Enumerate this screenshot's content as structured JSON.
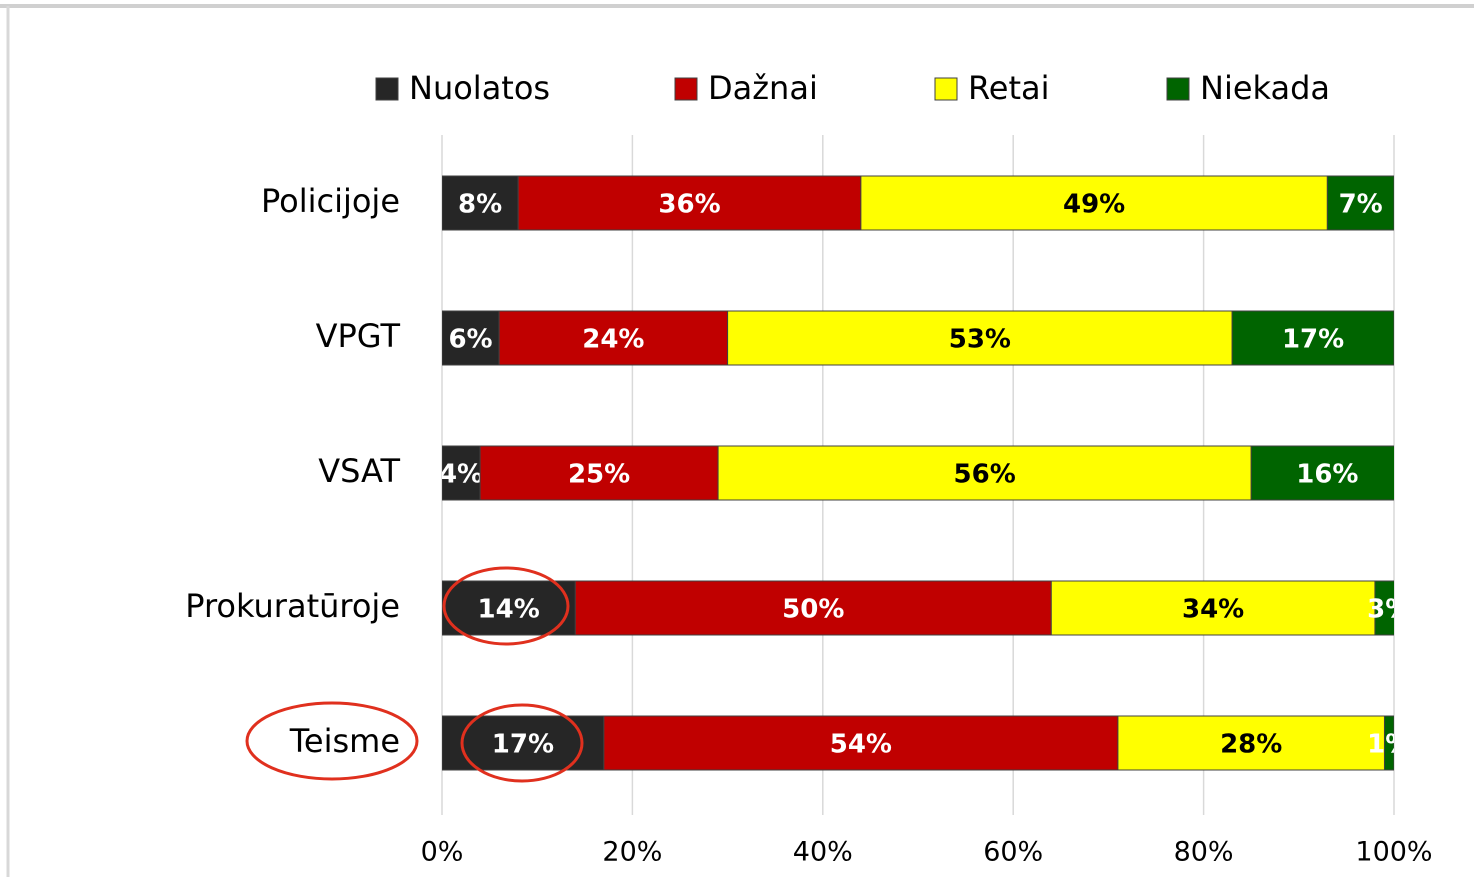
{
  "chart_data": {
    "type": "stacked-bar-horizontal",
    "categories": [
      "Policijoje",
      "VPGT",
      "VSAT",
      "Prokuratūroje",
      "Teisme"
    ],
    "series": [
      {
        "name": "Nuolatos",
        "color": "#262626",
        "values": [
          8,
          6,
          4,
          14,
          17
        ],
        "value_labels": [
          "8%",
          "6%",
          "4%",
          "14%",
          "17%"
        ]
      },
      {
        "name": "Dažnai",
        "color": "#c00000",
        "values": [
          36,
          24,
          25,
          50,
          54
        ],
        "value_labels": [
          "36%",
          "24%",
          "25%",
          "50%",
          "54%"
        ]
      },
      {
        "name": "Retai",
        "color": "#ffff00",
        "values": [
          49,
          53,
          56,
          34,
          28
        ],
        "value_labels": [
          "49%",
          "53%",
          "56%",
          "34%",
          "28%"
        ]
      },
      {
        "name": "Niekada",
        "color": "#006400",
        "values": [
          7,
          17,
          16,
          3,
          1
        ],
        "value_labels": [
          "7%",
          "17%",
          "16%",
          "3%",
          "1%"
        ]
      }
    ],
    "xlim": [
      0,
      100
    ],
    "xticks": [
      {
        "value": 0,
        "label": "0%"
      },
      {
        "value": 20,
        "label": "20%"
      },
      {
        "value": 40,
        "label": "40%"
      },
      {
        "value": 60,
        "label": "60%"
      },
      {
        "value": 80,
        "label": "80%"
      },
      {
        "value": 100,
        "label": "100%"
      }
    ],
    "grid": true,
    "legend": "top"
  }
}
